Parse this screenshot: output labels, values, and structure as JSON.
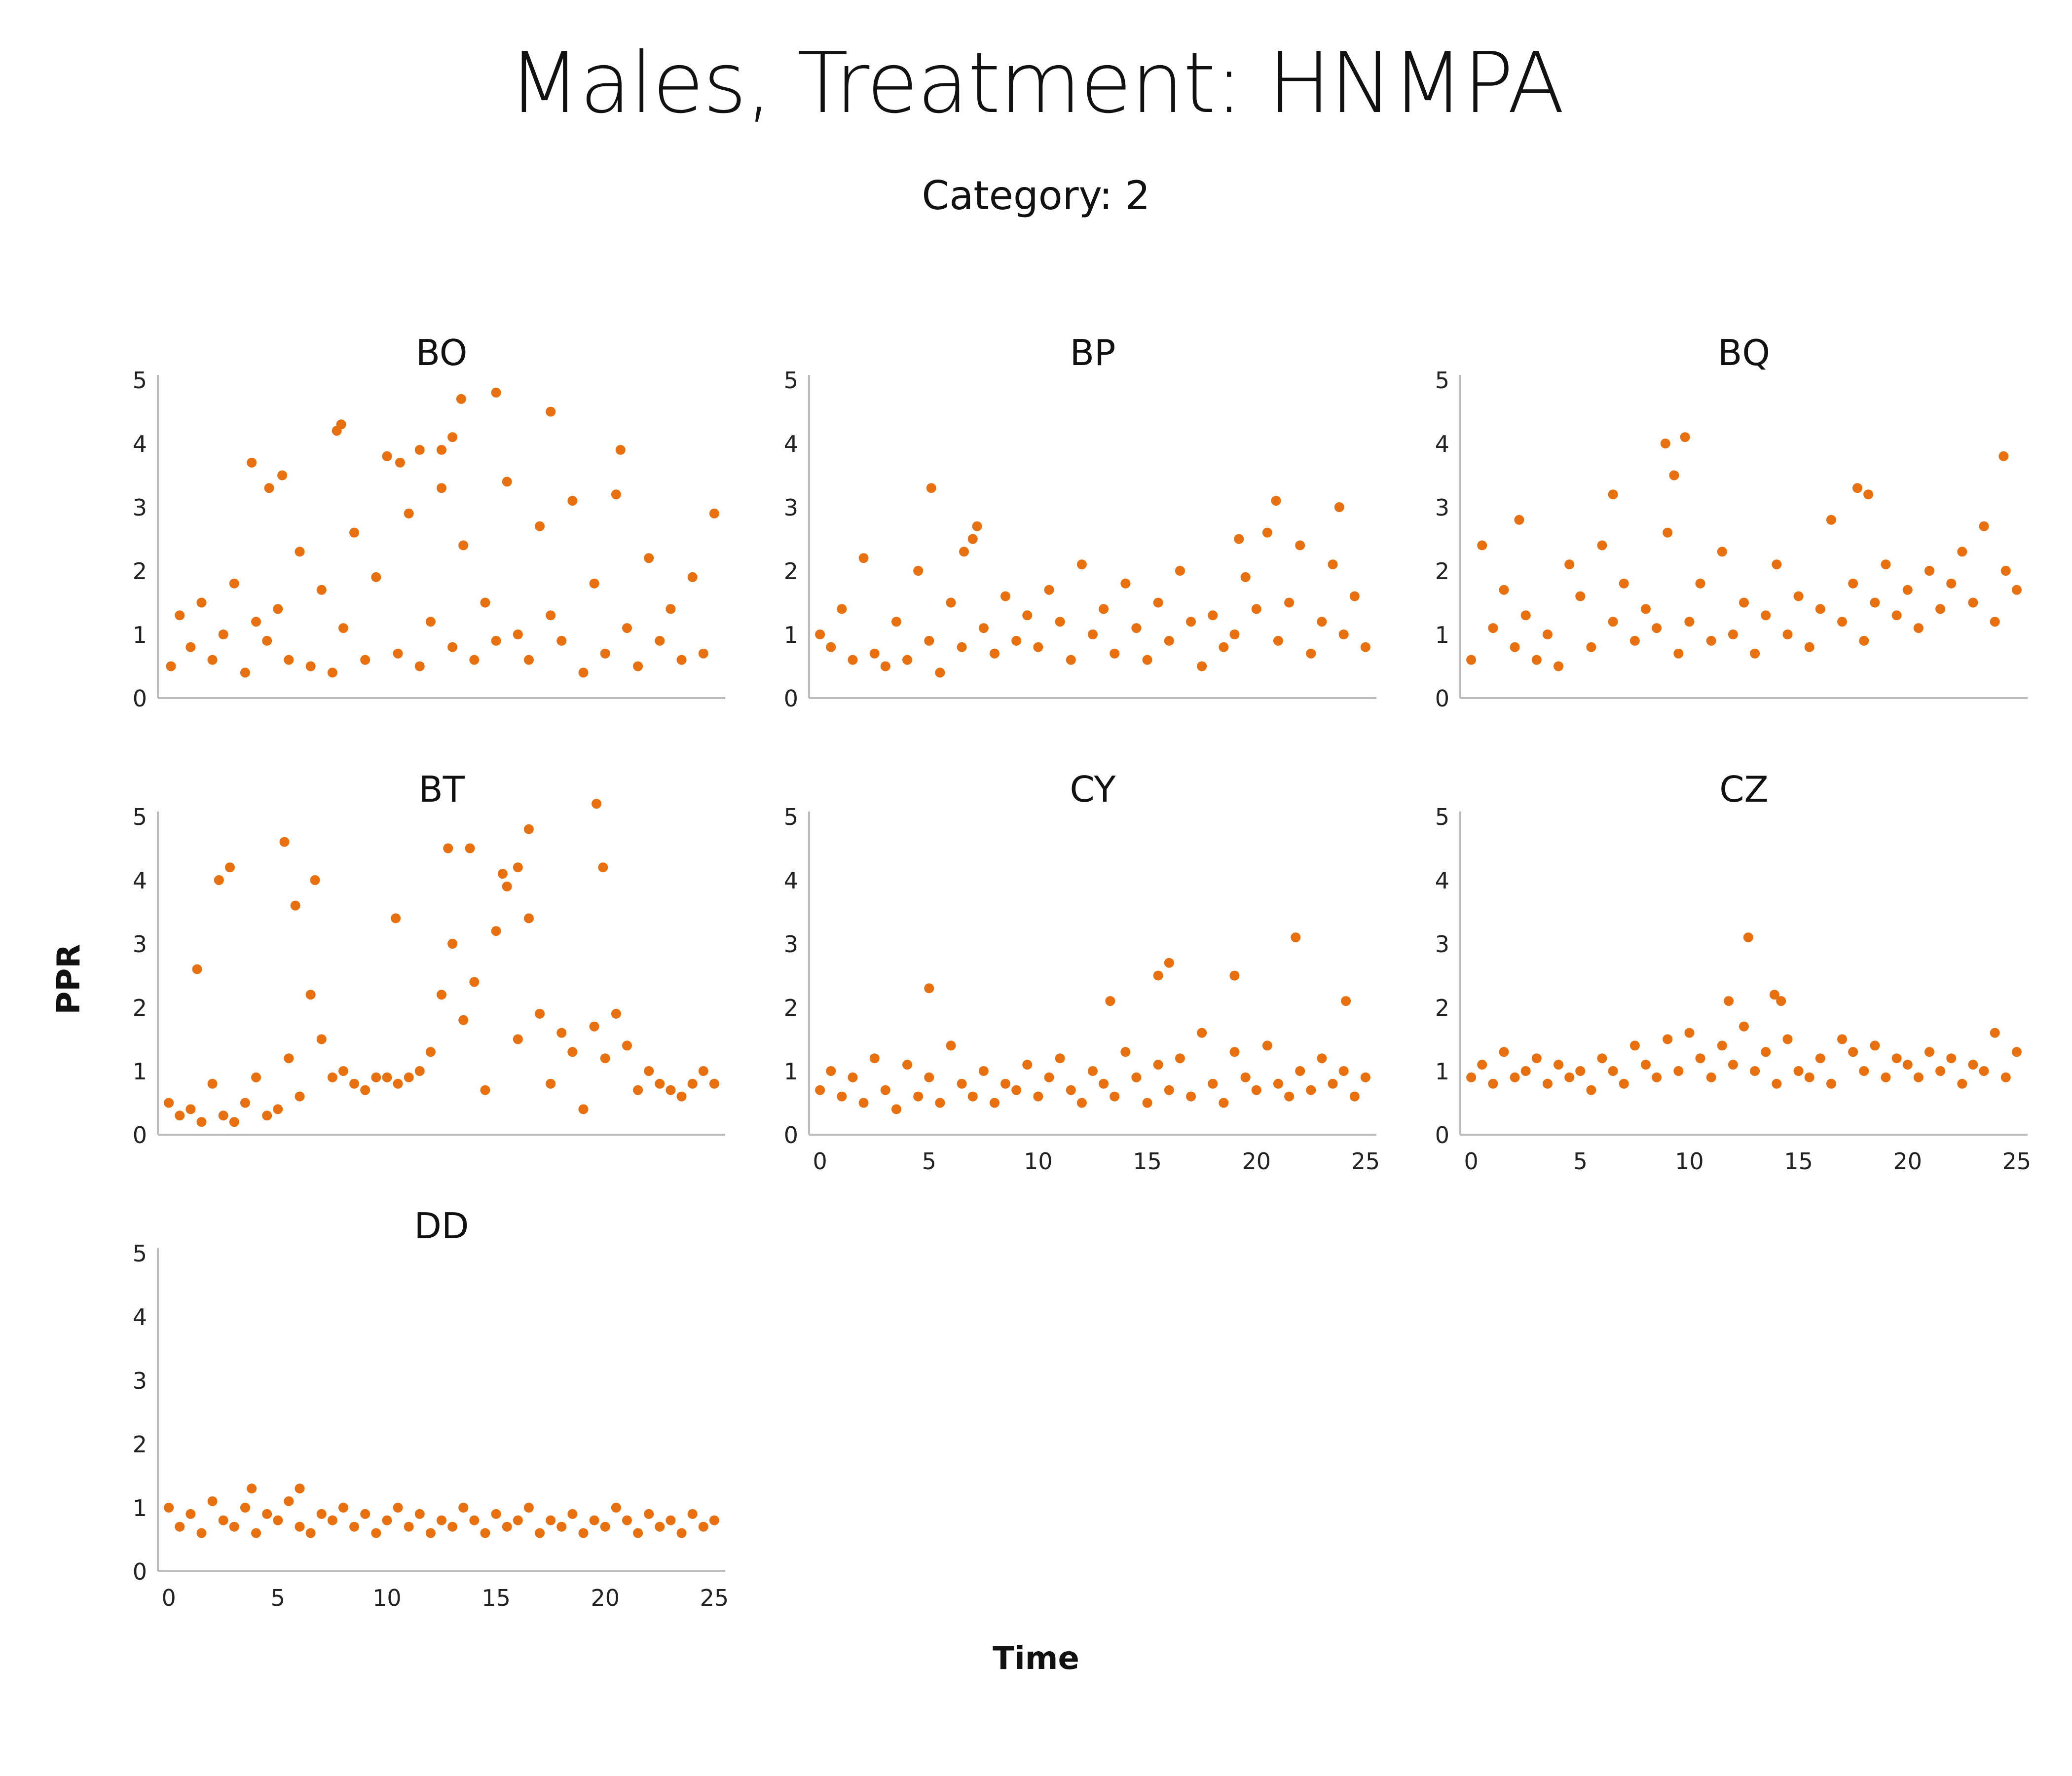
{
  "title": "Males, Treatment: HNMPA",
  "subtitle": "Category: 2",
  "xlabel": "Time",
  "ylabel": "PPR",
  "colors": {
    "points": "#E8700E",
    "axis": "#BBBBBB",
    "text": "#111111"
  },
  "chart_data": [
    {
      "type": "scatter",
      "title": "BO",
      "xlim": [
        -0.5,
        25.5
      ],
      "ylim": [
        0,
        5
      ],
      "yticks": [
        "0",
        "1",
        "2",
        "3",
        "4",
        "5"
      ],
      "xticks": [],
      "series": [
        {
          "x": [
            0.1,
            0.5,
            1.0,
            1.5,
            2.0,
            2.5,
            3.0,
            3.5,
            4.0,
            4.5,
            5.0,
            5.5,
            6.0,
            6.5,
            7.0,
            7.5,
            8.0,
            8.5,
            9.0,
            9.5,
            10.0,
            10.5,
            11.0,
            11.5,
            12.0,
            12.5,
            13.0,
            13.5,
            14.0,
            14.5,
            15.0,
            15.5,
            16.0,
            16.5,
            17.0,
            17.5,
            18.0,
            18.5,
            19.0,
            19.5,
            20.0,
            20.5,
            21.0,
            21.5,
            22.0,
            22.5,
            23.0,
            23.5,
            24.0,
            24.5,
            25.0,
            3.8,
            4.6,
            5.2,
            7.7,
            7.9,
            10.0,
            10.6,
            11.5,
            12.5,
            13.0,
            13.4,
            15.0,
            17.5,
            20.7
          ],
          "y": [
            0.5,
            1.3,
            0.8,
            1.5,
            0.6,
            1.0,
            1.8,
            0.4,
            1.2,
            0.9,
            1.4,
            0.6,
            2.3,
            0.5,
            1.7,
            0.4,
            1.1,
            2.6,
            0.6,
            1.9,
            3.8,
            0.7,
            2.9,
            0.5,
            1.2,
            3.3,
            0.8,
            2.4,
            0.6,
            1.5,
            0.9,
            3.4,
            1.0,
            0.6,
            2.7,
            1.3,
            0.9,
            3.1,
            0.4,
            1.8,
            0.7,
            3.2,
            1.1,
            0.5,
            2.2,
            0.9,
            1.4,
            0.6,
            1.9,
            0.7,
            2.9,
            3.7,
            3.3,
            3.5,
            4.2,
            4.3,
            3.8,
            3.7,
            3.9,
            3.9,
            4.1,
            4.7,
            4.8,
            4.5,
            3.9
          ]
        }
      ]
    },
    {
      "type": "scatter",
      "title": "BP",
      "xlim": [
        -0.5,
        25.5
      ],
      "ylim": [
        0,
        5
      ],
      "yticks": [
        "0",
        "1",
        "2",
        "3",
        "4",
        "5"
      ],
      "xticks": [],
      "series": [
        {
          "x": [
            0.0,
            0.5,
            1.0,
            1.5,
            2.0,
            2.5,
            3.0,
            3.5,
            4.0,
            4.5,
            5.0,
            5.5,
            6.0,
            6.5,
            7.0,
            7.5,
            8.0,
            8.5,
            9.0,
            9.5,
            10.0,
            10.5,
            11.0,
            11.5,
            12.0,
            12.5,
            13.0,
            13.5,
            14.0,
            14.5,
            15.0,
            15.5,
            16.0,
            16.5,
            17.0,
            17.5,
            18.0,
            18.5,
            19.0,
            19.5,
            20.0,
            20.5,
            21.0,
            21.5,
            22.0,
            22.5,
            23.0,
            23.5,
            24.0,
            24.5,
            25.0,
            5.1,
            6.6,
            7.2,
            19.2,
            20.9,
            23.8
          ],
          "y": [
            1.0,
            0.8,
            1.4,
            0.6,
            2.2,
            0.7,
            0.5,
            1.2,
            0.6,
            2.0,
            0.9,
            0.4,
            1.5,
            0.8,
            2.5,
            1.1,
            0.7,
            1.6,
            0.9,
            1.3,
            0.8,
            1.7,
            1.2,
            0.6,
            2.1,
            1.0,
            1.4,
            0.7,
            1.8,
            1.1,
            0.6,
            1.5,
            0.9,
            2.0,
            1.2,
            0.5,
            1.3,
            0.8,
            1.0,
            1.9,
            1.4,
            2.6,
            0.9,
            1.5,
            2.4,
            0.7,
            1.2,
            2.1,
            1.0,
            1.6,
            0.8,
            3.3,
            2.3,
            2.7,
            2.5,
            3.1,
            3.0
          ]
        }
      ]
    },
    {
      "type": "scatter",
      "title": "BQ",
      "xlim": [
        -0.5,
        25.5
      ],
      "ylim": [
        0,
        5
      ],
      "yticks": [
        "0",
        "1",
        "2",
        "3",
        "4",
        "5"
      ],
      "xticks": [],
      "series": [
        {
          "x": [
            0.0,
            0.5,
            1.0,
            1.5,
            2.0,
            2.5,
            3.0,
            3.5,
            4.0,
            4.5,
            5.0,
            5.5,
            6.0,
            6.5,
            7.0,
            7.5,
            8.0,
            8.5,
            9.0,
            9.5,
            10.0,
            10.5,
            11.0,
            11.5,
            12.0,
            12.5,
            13.0,
            13.5,
            14.0,
            14.5,
            15.0,
            15.5,
            16.0,
            16.5,
            17.0,
            17.5,
            18.0,
            18.5,
            19.0,
            19.5,
            20.0,
            20.5,
            21.0,
            21.5,
            22.0,
            22.5,
            23.0,
            23.5,
            24.0,
            24.5,
            25.0,
            2.2,
            6.5,
            8.9,
            9.3,
            9.8,
            17.7,
            18.2,
            24.4
          ],
          "y": [
            0.6,
            2.4,
            1.1,
            1.7,
            0.8,
            1.3,
            0.6,
            1.0,
            0.5,
            2.1,
            1.6,
            0.8,
            2.4,
            1.2,
            1.8,
            0.9,
            1.4,
            1.1,
            2.6,
            0.7,
            1.2,
            1.8,
            0.9,
            2.3,
            1.0,
            1.5,
            0.7,
            1.3,
            2.1,
            1.0,
            1.6,
            0.8,
            1.4,
            2.8,
            1.2,
            1.8,
            0.9,
            1.5,
            2.1,
            1.3,
            1.7,
            1.1,
            2.0,
            1.4,
            1.8,
            2.3,
            1.5,
            2.7,
            1.2,
            2.0,
            1.7,
            2.8,
            3.2,
            4.0,
            3.5,
            4.1,
            3.3,
            3.2,
            3.8
          ]
        }
      ]
    },
    {
      "type": "scatter",
      "title": "BT",
      "xlim": [
        -0.5,
        25.5
      ],
      "ylim": [
        0,
        5
      ],
      "yticks": [
        "0",
        "1",
        "2",
        "3",
        "4",
        "5"
      ],
      "xticks": [],
      "series": [
        {
          "x": [
            0.0,
            0.5,
            1.0,
            1.5,
            2.0,
            2.5,
            3.0,
            3.5,
            4.0,
            4.5,
            5.0,
            5.5,
            6.0,
            6.5,
            7.0,
            7.5,
            8.0,
            8.5,
            9.0,
            9.5,
            10.0,
            10.5,
            11.0,
            11.5,
            12.0,
            12.5,
            13.0,
            13.5,
            14.0,
            14.5,
            15.0,
            15.5,
            16.0,
            16.5,
            17.0,
            17.5,
            18.0,
            18.5,
            19.0,
            19.5,
            20.0,
            20.5,
            21.0,
            21.5,
            22.0,
            22.5,
            23.0,
            23.5,
            24.0,
            24.5,
            25.0,
            1.3,
            2.3,
            2.8,
            5.3,
            5.8,
            6.7,
            10.4,
            12.8,
            13.8,
            15.3,
            16.0,
            16.5,
            19.6,
            19.9
          ],
          "y": [
            0.5,
            0.3,
            0.4,
            0.2,
            0.8,
            0.3,
            0.2,
            0.5,
            0.9,
            0.3,
            0.4,
            1.2,
            0.6,
            2.2,
            1.5,
            0.9,
            1.0,
            0.8,
            0.7,
            0.9,
            0.9,
            0.8,
            0.9,
            1.0,
            1.3,
            2.2,
            3.0,
            1.8,
            2.4,
            0.7,
            3.2,
            3.9,
            1.5,
            3.4,
            1.9,
            0.8,
            1.6,
            1.3,
            0.4,
            1.7,
            1.2,
            1.9,
            1.4,
            0.7,
            1.0,
            0.8,
            0.7,
            0.6,
            0.8,
            1.0,
            0.8,
            2.6,
            4.0,
            4.2,
            4.6,
            3.6,
            4.0,
            3.4,
            4.5,
            4.5,
            4.1,
            4.2,
            4.8,
            5.2,
            4.2
          ]
        }
      ]
    },
    {
      "type": "scatter",
      "title": "CY",
      "xlim": [
        -0.5,
        25.5
      ],
      "ylim": [
        0,
        5
      ],
      "yticks": [
        "0",
        "1",
        "2",
        "3",
        "4",
        "5"
      ],
      "xticks": [
        "0",
        "5",
        "10",
        "15",
        "20",
        "25"
      ],
      "series": [
        {
          "x": [
            0.0,
            0.5,
            1.0,
            1.5,
            2.0,
            2.5,
            3.0,
            3.5,
            4.0,
            4.5,
            5.0,
            5.5,
            6.0,
            6.5,
            7.0,
            7.5,
            8.0,
            8.5,
            9.0,
            9.5,
            10.0,
            10.5,
            11.0,
            11.5,
            12.0,
            12.5,
            13.0,
            13.5,
            14.0,
            14.5,
            15.0,
            15.5,
            16.0,
            16.5,
            17.0,
            17.5,
            18.0,
            18.5,
            19.0,
            19.5,
            20.0,
            20.5,
            21.0,
            21.5,
            22.0,
            22.5,
            23.0,
            23.5,
            24.0,
            24.5,
            25.0,
            5.0,
            13.3,
            15.5,
            16.0,
            19.0,
            21.8,
            24.1
          ],
          "y": [
            0.7,
            1.0,
            0.6,
            0.9,
            0.5,
            1.2,
            0.7,
            0.4,
            1.1,
            0.6,
            0.9,
            0.5,
            1.4,
            0.8,
            0.6,
            1.0,
            0.5,
            0.8,
            0.7,
            1.1,
            0.6,
            0.9,
            1.2,
            0.7,
            0.5,
            1.0,
            0.8,
            0.6,
            1.3,
            0.9,
            0.5,
            1.1,
            0.7,
            1.2,
            0.6,
            1.6,
            0.8,
            0.5,
            1.3,
            0.9,
            0.7,
            1.4,
            0.8,
            0.6,
            1.0,
            0.7,
            1.2,
            0.8,
            1.0,
            0.6,
            0.9,
            2.3,
            2.1,
            2.5,
            2.7,
            2.5,
            3.1,
            2.1
          ]
        }
      ]
    },
    {
      "type": "scatter",
      "title": "CZ",
      "xlim": [
        -0.5,
        25.5
      ],
      "ylim": [
        0,
        5
      ],
      "yticks": [
        "0",
        "1",
        "2",
        "3",
        "4",
        "5"
      ],
      "xticks": [
        "0",
        "5",
        "10",
        "15",
        "20",
        "25"
      ],
      "series": [
        {
          "x": [
            0.0,
            0.5,
            1.0,
            1.5,
            2.0,
            2.5,
            3.0,
            3.5,
            4.0,
            4.5,
            5.0,
            5.5,
            6.0,
            6.5,
            7.0,
            7.5,
            8.0,
            8.5,
            9.0,
            9.5,
            10.0,
            10.5,
            11.0,
            11.5,
            12.0,
            12.5,
            13.0,
            13.5,
            14.0,
            14.5,
            15.0,
            15.5,
            16.0,
            16.5,
            17.0,
            17.5,
            18.0,
            18.5,
            19.0,
            19.5,
            20.0,
            20.5,
            21.0,
            21.5,
            22.0,
            22.5,
            23.0,
            23.5,
            24.0,
            24.5,
            25.0,
            11.8,
            12.7,
            13.9,
            14.2
          ],
          "y": [
            0.9,
            1.1,
            0.8,
            1.3,
            0.9,
            1.0,
            1.2,
            0.8,
            1.1,
            0.9,
            1.0,
            0.7,
            1.2,
            1.0,
            0.8,
            1.4,
            1.1,
            0.9,
            1.5,
            1.0,
            1.6,
            1.2,
            0.9,
            1.4,
            1.1,
            1.7,
            1.0,
            1.3,
            0.8,
            1.5,
            1.0,
            0.9,
            1.2,
            0.8,
            1.5,
            1.3,
            1.0,
            1.4,
            0.9,
            1.2,
            1.1,
            0.9,
            1.3,
            1.0,
            1.2,
            0.8,
            1.1,
            1.0,
            1.6,
            0.9,
            1.3,
            2.1,
            3.1,
            2.2,
            2.1
          ]
        }
      ]
    },
    {
      "type": "scatter",
      "title": "DD",
      "xlim": [
        -0.5,
        25.5
      ],
      "ylim": [
        0,
        5
      ],
      "yticks": [
        "0",
        "1",
        "2",
        "3",
        "4",
        "5"
      ],
      "xticks": [
        "0",
        "5",
        "10",
        "15",
        "20",
        "25"
      ],
      "series": [
        {
          "x": [
            0.0,
            0.5,
            1.0,
            1.5,
            2.0,
            2.5,
            3.0,
            3.5,
            4.0,
            4.5,
            5.0,
            5.5,
            6.0,
            6.5,
            7.0,
            7.5,
            8.0,
            8.5,
            9.0,
            9.5,
            10.0,
            10.5,
            11.0,
            11.5,
            12.0,
            12.5,
            13.0,
            13.5,
            14.0,
            14.5,
            15.0,
            15.5,
            16.0,
            16.5,
            17.0,
            17.5,
            18.0,
            18.5,
            19.0,
            19.5,
            20.0,
            20.5,
            21.0,
            21.5,
            22.0,
            22.5,
            23.0,
            23.5,
            24.0,
            24.5,
            25.0,
            3.8,
            6.0
          ],
          "y": [
            1.0,
            0.7,
            0.9,
            0.6,
            1.1,
            0.8,
            0.7,
            1.0,
            0.6,
            0.9,
            0.8,
            1.1,
            0.7,
            0.6,
            0.9,
            0.8,
            1.0,
            0.7,
            0.9,
            0.6,
            0.8,
            1.0,
            0.7,
            0.9,
            0.6,
            0.8,
            0.7,
            1.0,
            0.8,
            0.6,
            0.9,
            0.7,
            0.8,
            1.0,
            0.6,
            0.8,
            0.7,
            0.9,
            0.6,
            0.8,
            0.7,
            1.0,
            0.8,
            0.6,
            0.9,
            0.7,
            0.8,
            0.6,
            0.9,
            0.7,
            0.8,
            1.3,
            1.3
          ]
        }
      ]
    }
  ]
}
